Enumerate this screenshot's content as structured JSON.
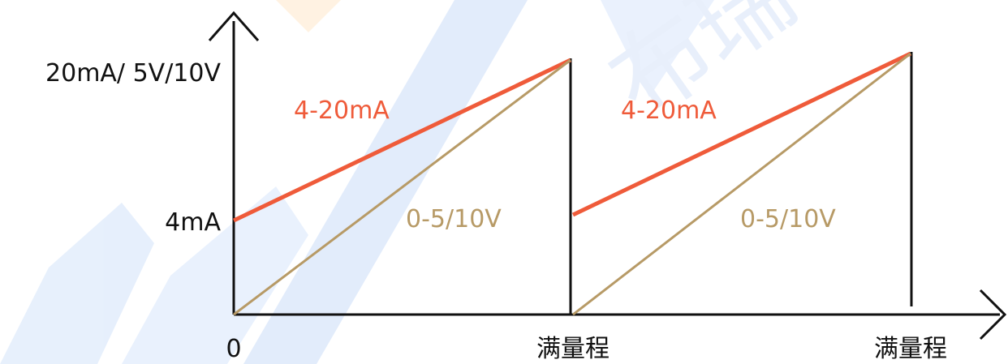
{
  "y_axis": {
    "top_label": "20mA/ 5V/10V",
    "mid_label": "4mA"
  },
  "x_axis": {
    "origin_label": "0",
    "end_labels": [
      "满量程",
      "满量程"
    ]
  },
  "signals": {
    "current_label": "4-20mA",
    "voltage_label": "0-5/10V"
  },
  "watermark": {
    "text": "BRIT 布瑞"
  },
  "colors": {
    "current_line": "#ef5b3a",
    "voltage_line": "#b79a66",
    "axes": "#111111",
    "watermark_blue": "#dbe8fb",
    "watermark_orange": "#fff0dc"
  },
  "panels": [
    {
      "current_line": {
        "start": 4,
        "end": 20
      },
      "voltage_line": {
        "start": 0,
        "end": 1
      }
    },
    {
      "current_line": {
        "start": 4,
        "end": 20
      },
      "voltage_line": {
        "start": 0,
        "end": 1
      }
    }
  ]
}
